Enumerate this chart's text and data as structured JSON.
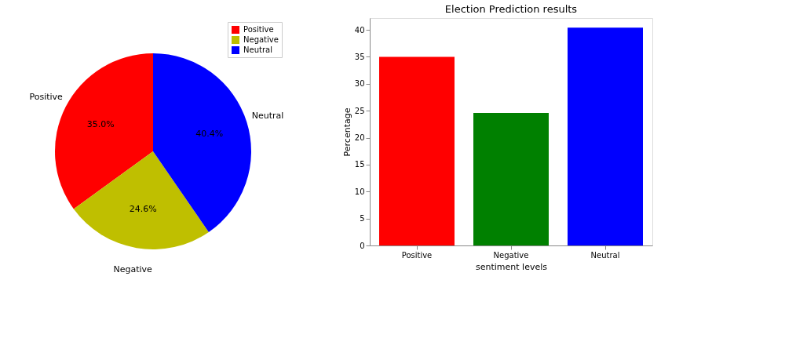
{
  "chart_data": [
    {
      "type": "pie",
      "categories": [
        "Positive",
        "Negative",
        "Neutral"
      ],
      "values": [
        35.0,
        24.6,
        40.4
      ],
      "colors": [
        "#ff0000",
        "#bfbf00",
        "#0000ff"
      ],
      "value_labels": [
        "35.0%",
        "24.6%",
        "40.4%"
      ],
      "legend": "top right"
    },
    {
      "type": "bar",
      "title": "Election Prediction results",
      "xlabel": "sentiment levels",
      "ylabel": "Percentage",
      "categories": [
        "Positive",
        "Negative",
        "Neutral"
      ],
      "values": [
        35.0,
        24.6,
        40.4
      ],
      "colors": [
        "#ff0000",
        "#008000",
        "#0000ff"
      ],
      "ylim": [
        0,
        42.2
      ],
      "yticks": [
        0,
        5,
        10,
        15,
        20,
        25,
        30,
        35,
        40
      ],
      "grid": false
    }
  ]
}
